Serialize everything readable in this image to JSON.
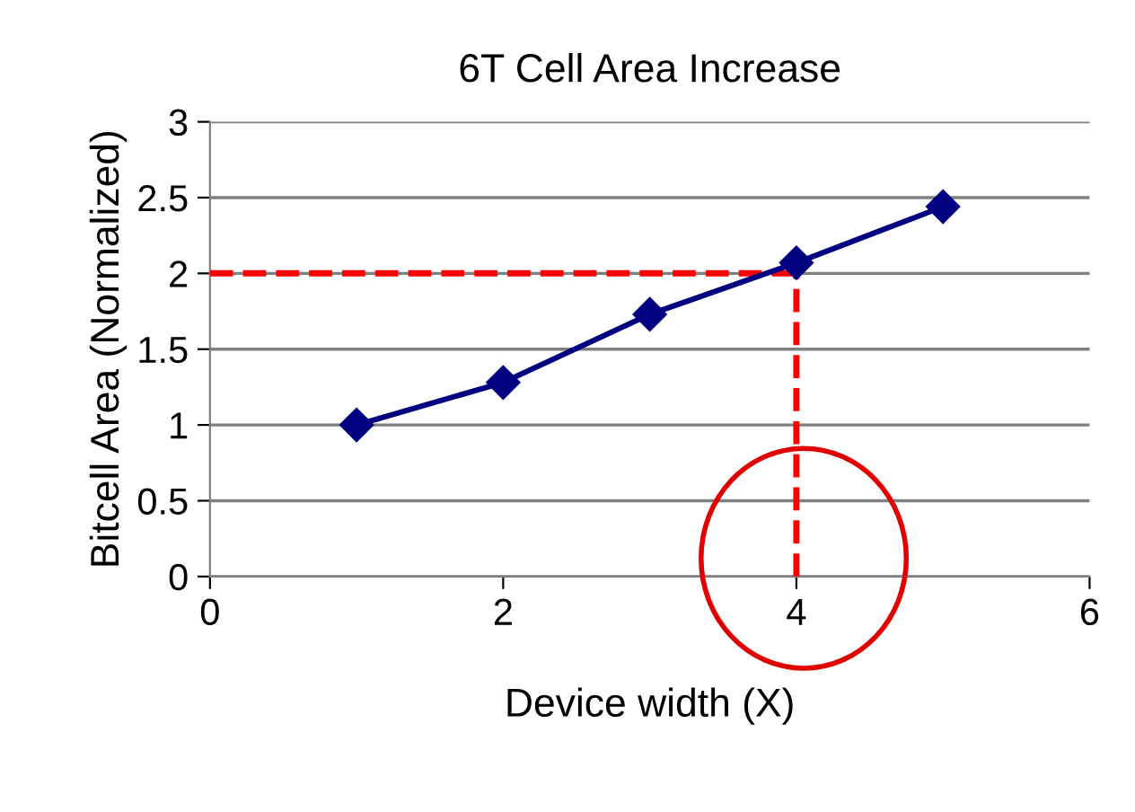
{
  "chart_data": {
    "type": "line",
    "title": "6T Cell Area Increase",
    "xlabel": "Device width (X)",
    "ylabel": "Bitcell Area (Normalized)",
    "x": [
      1,
      2,
      3,
      4,
      5
    ],
    "series": [
      {
        "color": "#000080",
        "values": [
          1.0,
          1.28,
          1.73,
          2.07,
          2.44
        ]
      }
    ],
    "xlim": [
      0,
      6
    ],
    "xticks": [
      0,
      2,
      4,
      6
    ],
    "ylim": [
      0,
      3
    ],
    "yticks": [
      0,
      0.5,
      1,
      1.5,
      2,
      2.5,
      3
    ],
    "grid": "y",
    "marker": "diamond",
    "line_style": "solid",
    "ref_lines": [
      {
        "axis": "y",
        "value": 2,
        "color": "#ff0000",
        "line_style": "dashed"
      },
      {
        "axis": "x",
        "value": 4,
        "color": "#ff0000",
        "line_style": "dashed"
      }
    ]
  }
}
